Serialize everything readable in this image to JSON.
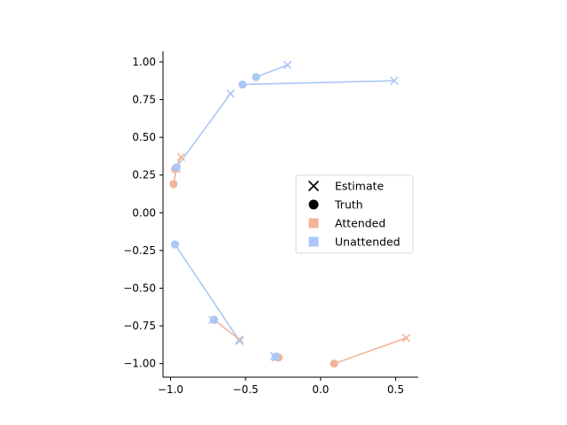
{
  "chart_data": {
    "type": "scatter",
    "xlim": [
      -1.05,
      0.65
    ],
    "ylim": [
      -1.09,
      1.07
    ],
    "x_ticks": [
      {
        "value": -1.0,
        "label": "−1.0"
      },
      {
        "value": -0.5,
        "label": "−0.5"
      },
      {
        "value": 0.0,
        "label": "0.0"
      },
      {
        "value": 0.5,
        "label": "0.5"
      }
    ],
    "y_ticks": [
      {
        "value": 1.0,
        "label": "1.00"
      },
      {
        "value": 0.75,
        "label": "0.75"
      },
      {
        "value": 0.5,
        "label": "0.50"
      },
      {
        "value": 0.25,
        "label": "0.25"
      },
      {
        "value": 0.0,
        "label": "0.00"
      },
      {
        "value": -0.25,
        "label": "−0.25"
      },
      {
        "value": -0.5,
        "label": "−0.50"
      },
      {
        "value": -0.75,
        "label": "−0.75"
      },
      {
        "value": -1.0,
        "label": "−1.00"
      }
    ],
    "grid": false,
    "legend": {
      "position": "center-right",
      "entries": [
        {
          "label": "Estimate",
          "marker": "x",
          "color": "#000000"
        },
        {
          "label": "Truth",
          "marker": "circle",
          "color": "#000000"
        },
        {
          "label": "Attended",
          "marker": "square",
          "color": "#f4b49a"
        },
        {
          "label": "Unattended",
          "marker": "square",
          "color": "#aac7f7"
        }
      ]
    },
    "colors": {
      "attended": "#f4b49a",
      "unattended": "#aac7f7"
    },
    "pairs": [
      {
        "group": "attended",
        "truth": [
          -0.97,
          0.29
        ],
        "estimate": [
          -0.93,
          0.37
        ]
      },
      {
        "group": "attended",
        "truth": [
          -0.98,
          0.19
        ],
        "estimate": [
          -0.96,
          0.29
        ]
      },
      {
        "group": "attended",
        "truth": [
          -0.71,
          -0.71
        ],
        "estimate": [
          -0.54,
          -0.84
        ]
      },
      {
        "group": "attended",
        "truth": [
          -0.28,
          -0.96
        ],
        "estimate": [
          -0.3,
          -0.96
        ]
      },
      {
        "group": "attended",
        "truth": [
          0.09,
          -1.0
        ],
        "estimate": [
          0.57,
          -0.83
        ]
      },
      {
        "group": "unattended",
        "truth": [
          -0.43,
          0.9
        ],
        "estimate": [
          -0.22,
          0.98
        ]
      },
      {
        "group": "unattended",
        "truth": [
          -0.52,
          0.85
        ],
        "estimate": [
          0.49,
          0.875
        ]
      },
      {
        "group": "unattended",
        "truth": [
          -0.96,
          0.3
        ],
        "estimate": [
          -0.6,
          0.79
        ]
      },
      {
        "group": "unattended",
        "truth": [
          -0.97,
          -0.21
        ],
        "estimate": [
          -0.54,
          -0.85
        ]
      },
      {
        "group": "unattended",
        "truth": [
          -0.71,
          -0.71
        ],
        "estimate": [
          -0.72,
          -0.71
        ]
      },
      {
        "group": "unattended",
        "truth": [
          -0.3,
          -0.955
        ],
        "estimate": [
          -0.31,
          -0.95
        ]
      }
    ]
  }
}
